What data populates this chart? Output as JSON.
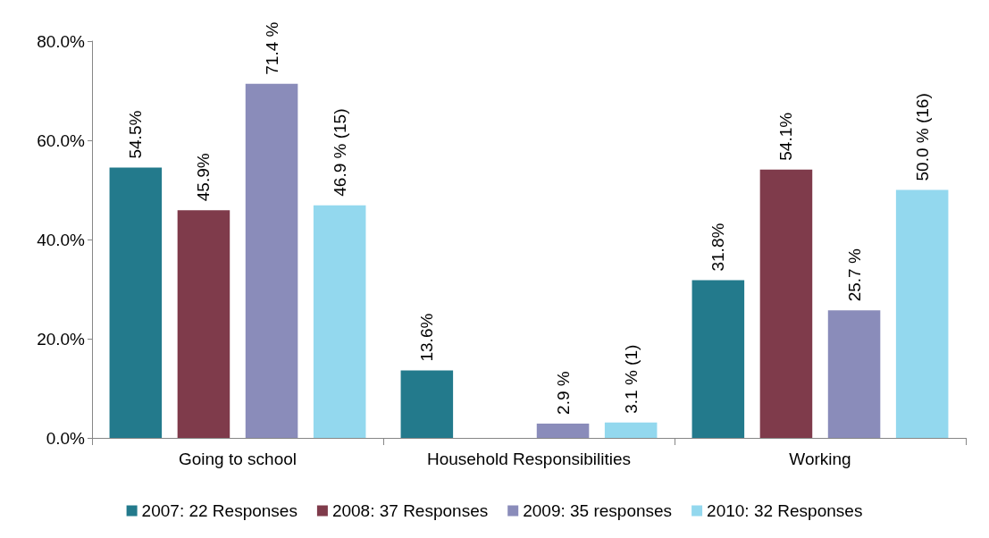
{
  "chart_data": {
    "type": "bar",
    "categories": [
      "Going to school",
      "Household Responsibilities",
      "Working"
    ],
    "series": [
      {
        "name": "2007: 22 Responses",
        "color": "#237a8c",
        "values": [
          54.5,
          13.6,
          31.8
        ],
        "value_labels": [
          "54.5%",
          "13.6%",
          "31.8%"
        ]
      },
      {
        "name": "2008: 37 Responses",
        "color": "#7f3b4b",
        "values": [
          45.9,
          null,
          54.1
        ],
        "value_labels": [
          "45.9%",
          null,
          "54.1%"
        ]
      },
      {
        "name": "2009: 35 responses",
        "color": "#8a8cba",
        "values": [
          71.4,
          2.9,
          25.7
        ],
        "value_labels": [
          "71.4 %",
          "2.9 %",
          "25.7 %"
        ]
      },
      {
        "name": "2010: 32 Responses",
        "color": "#93d8ee",
        "values": [
          46.9,
          3.1,
          50.0
        ],
        "value_labels": [
          "46.9 % (15)",
          "3.1 % (1)",
          "50.0 % (16)"
        ]
      }
    ],
    "ylim": [
      0,
      80
    ],
    "yticks": [
      {
        "value": 0,
        "label": "0.0%"
      },
      {
        "value": 20,
        "label": "20.0%"
      },
      {
        "value": 40,
        "label": "40.0%"
      },
      {
        "value": 60,
        "label": "60.0%"
      },
      {
        "value": 80,
        "label": "80.0%"
      }
    ],
    "grid": false,
    "legend": "bottom"
  }
}
